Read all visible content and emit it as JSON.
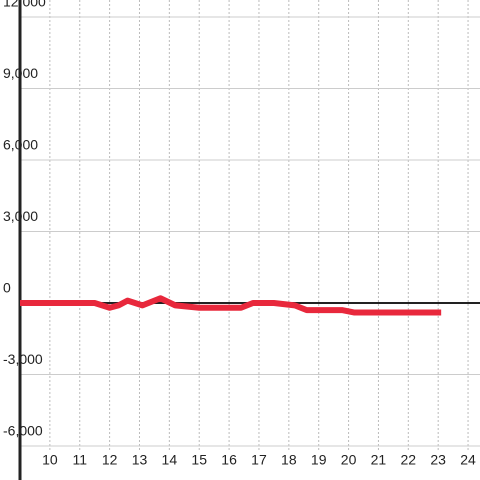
{
  "chart_data": {
    "type": "line",
    "x": [
      9,
      11.5,
      12,
      12.3,
      12.6,
      13.1,
      13.7,
      14.2,
      15,
      16.4,
      16.8,
      17.5,
      18.2,
      18.6,
      19.8,
      20.2,
      23.1
    ],
    "series": [
      {
        "color": "#e8283c",
        "values": [
          0,
          0,
          -200,
          -100,
          100,
          -100,
          200,
          -100,
          -200,
          -200,
          0,
          0,
          -100,
          -300,
          -300,
          -400,
          -400
        ]
      }
    ],
    "xlim": [
      9,
      24.4
    ],
    "xticks": [
      10,
      11,
      12,
      13,
      14,
      15,
      16,
      17,
      18,
      19,
      20,
      21,
      22,
      23,
      24
    ],
    "ylim": [
      -6000,
      12000
    ],
    "yticks": [
      {
        "value": -6000,
        "label": "-6,000"
      },
      {
        "value": -3000,
        "label": "-3,000"
      },
      0,
      {
        "value": 3000,
        "label": "3,000"
      },
      {
        "value": 6000,
        "label": "6,000"
      },
      {
        "value": 9000,
        "label": "9,000"
      },
      {
        "value": 12000,
        "label": "12,000"
      }
    ],
    "grid": true
  }
}
